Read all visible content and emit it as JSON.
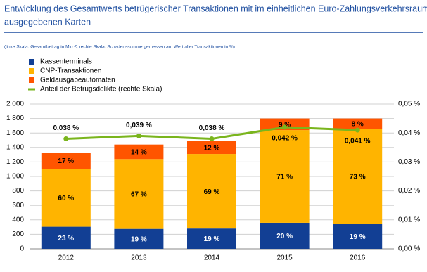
{
  "chart_data": {
    "type": "stacked_bar_line",
    "title": [
      "Entwicklung des Gesamtwerts betrügerischer Transaktionen mit im einheitlichen Euro-Zahlungsverkehrsraum",
      "ausgegebenen Karten"
    ],
    "subtitle": "(linke Skala: Gesamtbetrag in Mio €; rechte Skala: Schadenssumme gemessen am Wert aller Transaktionen in %)",
    "categories": [
      "2012",
      "2013",
      "2014",
      "2015",
      "2016"
    ],
    "series": [
      {
        "name": "Kassenterminals",
        "color": "#123f94",
        "values": [
          305,
          275,
          280,
          360,
          345
        ],
        "share_labels": [
          "23 %",
          "19 %",
          "19 %",
          "20 %",
          "19 %"
        ]
      },
      {
        "name": "CNP-Transaktionen",
        "color": "#ffb400",
        "values": [
          800,
          965,
          1030,
          1280,
          1315
        ],
        "share_labels": [
          "60 %",
          "67 %",
          "69 %",
          "71 %",
          "73 %"
        ]
      },
      {
        "name": "Geldausgabeautomaten",
        "color": "#ff5500",
        "values": [
          225,
          200,
          180,
          160,
          140
        ],
        "share_labels": [
          "17 %",
          "14 %",
          "12 %",
          "9 %",
          "8 %"
        ]
      },
      {
        "name": "Anteil der Betrugsdelikte (rechte Skala)",
        "color": "#7ab51d",
        "axis": "y2",
        "values": [
          0.038,
          0.039,
          0.038,
          0.042,
          0.041
        ],
        "value_labels": [
          "0,038 %",
          "0,039 %",
          "0,038 %",
          "0,042 %",
          "0,041 %"
        ]
      }
    ],
    "ylim": [
      0,
      2000
    ],
    "yticks": [
      0,
      200,
      400,
      600,
      800,
      {
        "value": 1000,
        "label": "1 000"
      },
      {
        "value": 1200,
        "label": "1 200"
      },
      {
        "value": 1400,
        "label": "1 400"
      },
      {
        "value": 1600,
        "label": "1 600"
      },
      {
        "value": 1800,
        "label": "1 800"
      },
      {
        "value": 2000,
        "label": "2 000"
      }
    ],
    "y2lim": [
      0,
      0.05
    ],
    "y2ticks": [
      {
        "value": 0,
        "label": "0,00 %"
      },
      {
        "value": 0.01,
        "label": "0,01 %"
      },
      {
        "value": 0.02,
        "label": "0,02 %"
      },
      {
        "value": 0.03,
        "label": "0,03 %"
      },
      {
        "value": 0.04,
        "label": "0,04 %"
      },
      {
        "value": 0.05,
        "label": "0,05 %"
      }
    ],
    "grid": true
  }
}
